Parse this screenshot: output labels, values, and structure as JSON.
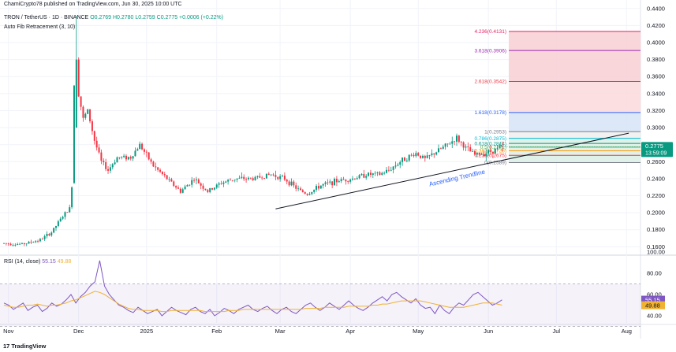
{
  "header": {
    "publisher": "ChamiCrypto78 published on TradingView.com, Jun 30, 2025 10:00 UTC",
    "symbol": "TRON / TetherUS · 1D · BINANCE",
    "ohlc": "O0.2769 H0.2780 L0.2759 C0.2775 +0.0006 (+0.22%)",
    "indicator": "Auto Fib Retracement (3, 10)"
  },
  "rsi_panel": {
    "title": "RSI (14, close)",
    "rsi_value": "55.15",
    "ma_value": "49.88"
  },
  "footer": {
    "brand": "TradingView",
    "logo": "17"
  },
  "colors": {
    "up": "#089981",
    "down": "#f23645",
    "rsi_line": "#7e57c2",
    "rsi_ma": "#f0b232",
    "trend": "#131722",
    "trend_label": "#2962ff"
  },
  "chart_data": [
    {
      "type": "candlestick",
      "title": "TRON / TetherUS · 1D · BINANCE",
      "x_tick_labels": [
        "Nov",
        "Dec",
        "2025",
        "Feb",
        "Mar",
        "Apr",
        "May",
        "Jun",
        "Jul",
        "Aug"
      ],
      "y_tick_labels": [
        "0.1600",
        "0.1800",
        "0.2000",
        "0.2200",
        "0.2400",
        "0.2600",
        "0.2800",
        "0.3000",
        "0.3200",
        "0.3400",
        "0.3600",
        "0.3800",
        "0.4000",
        "0.4200",
        "0.4400"
      ],
      "ylim": [
        0.152,
        0.45
      ],
      "grid": true,
      "price_path": [
        {
          "day": 0,
          "price": 0.164
        },
        {
          "day": 8,
          "price": 0.163
        },
        {
          "day": 16,
          "price": 0.168
        },
        {
          "day": 21,
          "price": 0.177
        },
        {
          "day": 26,
          "price": 0.196
        },
        {
          "day": 29,
          "price": 0.205
        },
        {
          "day": 30,
          "price": 0.232
        },
        {
          "day": 31,
          "price": 0.35
        },
        {
          "day": 32,
          "price": 0.42
        },
        {
          "day": 33,
          "price": 0.34
        },
        {
          "day": 35,
          "price": 0.31
        },
        {
          "day": 37,
          "price": 0.32
        },
        {
          "day": 40,
          "price": 0.285
        },
        {
          "day": 43,
          "price": 0.26
        },
        {
          "day": 46,
          "price": 0.25
        },
        {
          "day": 50,
          "price": 0.265
        },
        {
          "day": 56,
          "price": 0.265
        },
        {
          "day": 60,
          "price": 0.28
        },
        {
          "day": 66,
          "price": 0.255
        },
        {
          "day": 72,
          "price": 0.24
        },
        {
          "day": 78,
          "price": 0.225
        },
        {
          "day": 84,
          "price": 0.24
        },
        {
          "day": 90,
          "price": 0.225
        },
        {
          "day": 96,
          "price": 0.235
        },
        {
          "day": 102,
          "price": 0.24
        },
        {
          "day": 110,
          "price": 0.24
        },
        {
          "day": 118,
          "price": 0.245
        },
        {
          "day": 124,
          "price": 0.24
        },
        {
          "day": 130,
          "price": 0.227
        },
        {
          "day": 134,
          "price": 0.222
        },
        {
          "day": 140,
          "price": 0.232
        },
        {
          "day": 148,
          "price": 0.238
        },
        {
          "day": 154,
          "price": 0.24
        },
        {
          "day": 160,
          "price": 0.245
        },
        {
          "day": 166,
          "price": 0.245
        },
        {
          "day": 170,
          "price": 0.25
        },
        {
          "day": 176,
          "price": 0.262
        },
        {
          "day": 182,
          "price": 0.27
        },
        {
          "day": 186,
          "price": 0.263
        },
        {
          "day": 190,
          "price": 0.27
        },
        {
          "day": 196,
          "price": 0.28
        },
        {
          "day": 200,
          "price": 0.288
        },
        {
          "day": 204,
          "price": 0.276
        },
        {
          "day": 208,
          "price": 0.268
        },
        {
          "day": 212,
          "price": 0.27
        },
        {
          "day": 216,
          "price": 0.273
        },
        {
          "day": 220,
          "price": 0.2775
        }
      ],
      "fib_levels": [
        {
          "label": "0(0.2589)",
          "value": 0.2589,
          "color": "#787b86"
        },
        {
          "label": "0.236(0.2675)",
          "value": 0.2675,
          "color": "#f23645"
        },
        {
          "label": "0.382(0.2728)",
          "value": 0.2728,
          "color": "#ff9800"
        },
        {
          "label": "0.5(0.2771)",
          "value": 0.2771,
          "color": "#4caf50"
        },
        {
          "label": "0.618(0.2814)",
          "value": 0.2814,
          "color": "#089981"
        },
        {
          "label": "0.786(0.2875)",
          "value": 0.2875,
          "color": "#00bcd4"
        },
        {
          "label": "1(0.2953)",
          "value": 0.2953,
          "color": "#787b86"
        },
        {
          "label": "1.618(0.3178)",
          "value": 0.3178,
          "color": "#2962ff"
        },
        {
          "label": "2.618(0.3542)",
          "value": 0.3542,
          "color": "#f23645"
        },
        {
          "label": "3.618(0.3906)",
          "value": 0.3906,
          "color": "#9c27b0"
        },
        {
          "label": "4.236(0.4131)",
          "value": 0.4131,
          "color": "#e91e63"
        }
      ],
      "trendline": {
        "label": "Ascending Trendline",
        "start": {
          "day": 120,
          "price": 0.2045
        },
        "end": {
          "day": 276,
          "price": 0.2935
        }
      },
      "current_price": {
        "label": "0.2775",
        "countdown": "13:59:09"
      }
    },
    {
      "type": "line",
      "title": "RSI (14, close)",
      "y_tick_labels": [
        "40.00",
        "60.00",
        "80.00",
        "100.00"
      ],
      "series": [
        {
          "values": [
            52,
            50,
            46,
            49,
            52,
            45,
            48,
            50,
            44,
            47,
            52,
            49,
            51,
            55,
            60,
            52,
            58,
            62,
            68,
            72,
            92,
            68,
            60,
            55,
            50,
            48,
            45,
            43,
            48,
            45,
            42,
            44,
            46,
            40,
            44,
            48,
            45,
            43,
            41,
            46,
            48,
            44,
            42,
            46,
            40,
            43,
            47,
            45,
            42,
            46,
            48,
            50,
            46,
            44,
            47,
            49,
            45,
            42,
            46,
            48,
            44,
            42,
            46,
            50,
            52,
            48,
            45,
            48,
            52,
            49,
            46,
            50,
            54,
            50,
            47,
            45,
            48,
            52,
            55,
            58,
            54,
            60,
            62,
            58,
            55,
            52,
            56,
            50,
            47,
            48,
            42,
            50,
            45,
            42,
            48,
            52,
            50,
            55,
            60,
            62,
            58,
            54,
            50,
            52,
            55
          ],
          "x_span_days": [
            0,
            220
          ]
        },
        {
          "values": [
            50,
            49,
            48,
            48,
            49,
            50,
            50,
            51,
            50,
            49,
            50,
            50,
            51,
            52,
            54,
            55,
            57,
            59,
            61,
            63,
            62,
            60,
            57,
            54,
            51,
            49,
            47,
            46,
            46,
            45,
            45,
            45,
            45,
            44,
            44,
            45,
            45,
            45,
            45,
            45,
            45,
            45,
            44,
            44,
            44,
            44,
            44,
            45,
            45,
            45,
            46,
            46,
            46,
            46,
            46,
            46,
            46,
            46,
            46,
            46,
            46,
            46,
            46,
            47,
            47,
            47,
            47,
            48,
            48,
            48,
            48,
            48,
            49,
            49,
            49,
            49,
            49,
            50,
            50,
            51,
            51,
            52,
            53,
            54,
            54,
            54,
            54,
            54,
            53,
            52,
            51,
            50,
            49,
            48,
            48,
            48,
            48,
            49,
            50,
            51,
            52,
            52,
            52,
            51,
            50
          ],
          "x_span_days": [
            0,
            220
          ]
        }
      ],
      "bands": [
        30,
        70
      ],
      "current": {
        "rsi": "55.15",
        "ma": "49.88"
      }
    }
  ]
}
